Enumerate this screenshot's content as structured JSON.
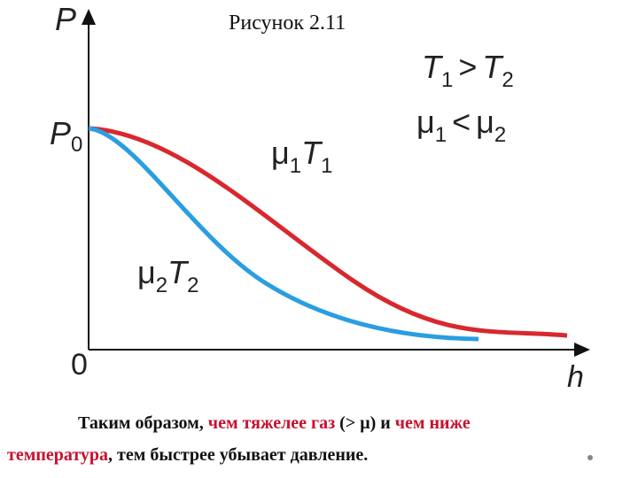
{
  "figure": {
    "caption": "Рисунок 2.11",
    "y_axis": "P",
    "x_axis": "h",
    "origin": "0",
    "p0": {
      "t": "P",
      "s": "0"
    },
    "relation_1": {
      "left_t": "T",
      "left_s": "1",
      "op": ">",
      "right_t": "T",
      "right_s": "2"
    },
    "relation_2": {
      "left_t": "μ",
      "left_s": "1",
      "op": "<",
      "right_t": "μ",
      "right_s": "2"
    },
    "curve_1": {
      "a_t": "μ",
      "a_s": "1",
      "b_t": "T",
      "b_s": "1"
    },
    "curve_2": {
      "a_t": "μ",
      "a_s": "2",
      "b_t": "T",
      "b_s": "2"
    }
  },
  "text": {
    "line_1": [
      "Таким образом, ",
      "чем тяжелее газ",
      " (> μ) и ",
      "чем ниже"
    ],
    "line_2": [
      "температура",
      ", тем быстрее убывает давление."
    ]
  }
}
